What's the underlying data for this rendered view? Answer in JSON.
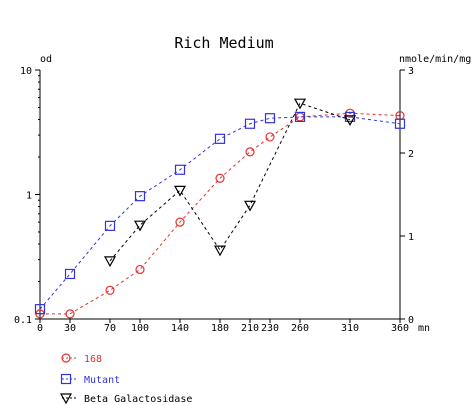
{
  "chart_data": {
    "type": "line",
    "title": "Rich Medium",
    "xlabel": "mn",
    "ylabel_left": "od",
    "ylabel_right": "nmole/min/mg",
    "x_ticks": [
      0,
      30,
      70,
      100,
      140,
      180,
      210,
      230,
      260,
      310,
      360
    ],
    "y_left_scale": "log",
    "y_left_lim": [
      0.1,
      10
    ],
    "y_left_ticks": [
      "10",
      "1",
      "0.1"
    ],
    "y_right_lim": [
      0,
      3
    ],
    "y_right_ticks": [
      "3",
      "2",
      "1",
      "0"
    ],
    "grid": false,
    "legend_position": "bottom-left",
    "series": [
      {
        "name": "168",
        "axis": "left",
        "color": "#e8302c",
        "marker": "circle",
        "x": [
          0,
          30,
          70,
          100,
          140,
          180,
          210,
          230,
          260,
          310,
          360
        ],
        "y": [
          0.11,
          0.11,
          0.17,
          0.25,
          0.6,
          1.35,
          2.2,
          2.9,
          4.2,
          4.5,
          4.3
        ]
      },
      {
        "name": "Mutant",
        "axis": "left",
        "color": "#3333dd",
        "marker": "square",
        "x": [
          0,
          30,
          70,
          100,
          140,
          180,
          210,
          230,
          260,
          310,
          360
        ],
        "y": [
          0.12,
          0.23,
          0.56,
          0.97,
          1.58,
          2.8,
          3.7,
          4.1,
          4.2,
          4.2,
          3.7
        ]
      },
      {
        "name": "Beta Galactosidase",
        "axis": "right",
        "color": "#000000",
        "marker": "triangle-down",
        "x": [
          70,
          100,
          140,
          180,
          210,
          260,
          310
        ],
        "y": [
          0.7,
          1.13,
          1.55,
          0.83,
          1.37,
          2.6,
          2.4
        ]
      }
    ]
  }
}
